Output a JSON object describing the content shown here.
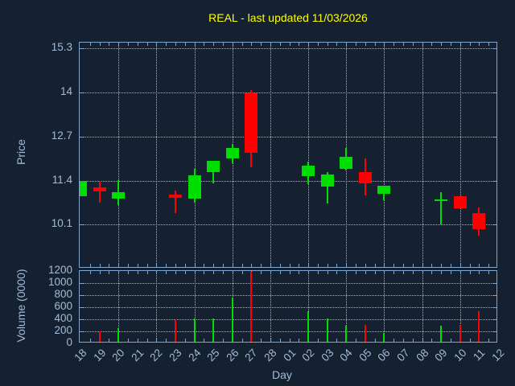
{
  "title": "REAL - last updated 11/03/2026",
  "xlabel": "Day",
  "colors": {
    "background": "#152030",
    "title": "#ffff00",
    "axis_frame": "#7fa6cf",
    "tick_label": "#a3bcd8",
    "grid": "#a9b2bb",
    "up_candle": "#00dd00",
    "down_candle": "#ff0000"
  },
  "chart_data": [
    {
      "type": "candlestick",
      "panel": "price",
      "title": "REAL - last updated 11/03/2026",
      "ylabel": "Price",
      "yticks": [
        10.1,
        11.4,
        12.7,
        14,
        15.3
      ],
      "ylim": [
        8.81,
        15.46
      ],
      "grid": true,
      "categories": [
        "18",
        "19",
        "20",
        "21",
        "22",
        "23",
        "24",
        "25",
        "26",
        "27",
        "28",
        "01",
        "02",
        "03",
        "04",
        "05",
        "06",
        "07",
        "08",
        "09",
        "10",
        "11",
        "12"
      ],
      "gridline_days": [
        "20",
        "22",
        "24",
        "26",
        "28",
        "02",
        "04",
        "06",
        "08",
        "10"
      ],
      "candles": [
        {
          "day": "18",
          "open": 10.94,
          "high": 11.4,
          "low": 10.94,
          "close": 11.4,
          "dir": "up"
        },
        {
          "day": "19",
          "open": 11.19,
          "high": 11.4,
          "low": 10.75,
          "close": 11.07,
          "dir": "down"
        },
        {
          "day": "20",
          "open": 10.87,
          "high": 11.41,
          "low": 10.68,
          "close": 11.05,
          "dir": "up"
        },
        {
          "day": "23",
          "open": 10.99,
          "high": 11.11,
          "low": 10.44,
          "close": 10.9,
          "dir": "down"
        },
        {
          "day": "24",
          "open": 10.87,
          "high": 11.74,
          "low": 10.75,
          "close": 11.56,
          "dir": "up"
        },
        {
          "day": "25",
          "open": 11.66,
          "high": 11.98,
          "low": 11.32,
          "close": 11.98,
          "dir": "up"
        },
        {
          "day": "26",
          "open": 12.06,
          "high": 12.47,
          "low": 11.92,
          "close": 12.35,
          "dir": "up"
        },
        {
          "day": "27",
          "open": 13.98,
          "high": 14.07,
          "low": 11.79,
          "close": 12.21,
          "dir": "down"
        },
        {
          "day": "02",
          "open": 11.54,
          "high": 11.95,
          "low": 11.3,
          "close": 11.83,
          "dir": "up"
        },
        {
          "day": "03",
          "open": 11.23,
          "high": 11.66,
          "low": 10.72,
          "close": 11.58,
          "dir": "up"
        },
        {
          "day": "04",
          "open": 11.74,
          "high": 12.36,
          "low": 11.7,
          "close": 12.1,
          "dir": "up"
        },
        {
          "day": "05",
          "open": 11.64,
          "high": 12.06,
          "low": 10.97,
          "close": 11.32,
          "dir": "down"
        },
        {
          "day": "06",
          "open": 11.01,
          "high": 11.25,
          "low": 10.83,
          "close": 11.25,
          "dir": "up"
        },
        {
          "day": "09",
          "open": 10.81,
          "high": 11.05,
          "low": 10.12,
          "close": 10.85,
          "dir": "up"
        },
        {
          "day": "10",
          "open": 10.95,
          "high": 10.95,
          "low": 10.58,
          "close": 10.58,
          "dir": "down"
        },
        {
          "day": "11",
          "open": 10.44,
          "high": 10.6,
          "low": 9.77,
          "close": 9.98,
          "dir": "down"
        }
      ]
    },
    {
      "type": "bar",
      "panel": "volume",
      "ylabel": "Volume (0000)",
      "yticks": [
        0,
        200,
        400,
        600,
        800,
        1000,
        1200
      ],
      "ylim": [
        0,
        1200
      ],
      "grid": true,
      "bars": [
        {
          "day": "19",
          "value": 200,
          "dir": "down"
        },
        {
          "day": "20",
          "value": 260,
          "dir": "up"
        },
        {
          "day": "23",
          "value": 400,
          "dir": "down"
        },
        {
          "day": "24",
          "value": 420,
          "dir": "up"
        },
        {
          "day": "25",
          "value": 420,
          "dir": "up"
        },
        {
          "day": "26",
          "value": 760,
          "dir": "up"
        },
        {
          "day": "27",
          "value": 1190,
          "dir": "down"
        },
        {
          "day": "02",
          "value": 530,
          "dir": "up"
        },
        {
          "day": "03",
          "value": 410,
          "dir": "up"
        },
        {
          "day": "04",
          "value": 300,
          "dir": "up"
        },
        {
          "day": "05",
          "value": 310,
          "dir": "down"
        },
        {
          "day": "06",
          "value": 180,
          "dir": "up"
        },
        {
          "day": "09",
          "value": 300,
          "dir": "up"
        },
        {
          "day": "10",
          "value": 310,
          "dir": "down"
        },
        {
          "day": "11",
          "value": 540,
          "dir": "down"
        }
      ]
    }
  ]
}
